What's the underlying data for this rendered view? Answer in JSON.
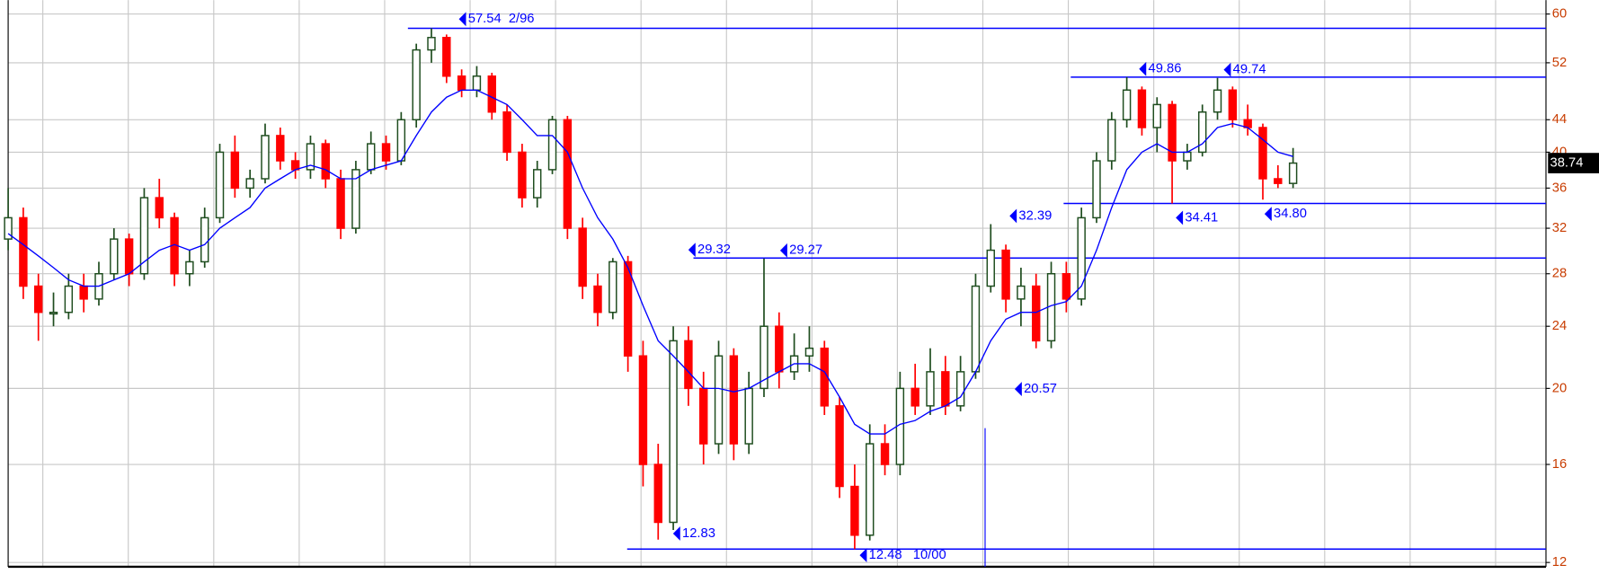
{
  "chart_data": {
    "type": "candlestick",
    "log_scale": true,
    "grid": true,
    "up_color": "#1f4d1f",
    "down_color": "#ff0000",
    "ma_color": "#0000ff",
    "level_color": "#0000ff",
    "ylim": [
      11.85,
      62.5
    ],
    "yticks": [
      12,
      16,
      20,
      24,
      28,
      32,
      36,
      40,
      44,
      52,
      60
    ],
    "last_price": 38.74,
    "open": [
      31,
      33,
      27,
      25,
      25,
      27,
      26,
      28,
      31,
      28,
      35,
      33,
      28,
      29,
      33,
      40,
      36,
      37,
      42,
      39,
      38,
      41,
      37,
      32,
      38,
      41,
      39,
      44,
      54,
      56,
      50,
      48,
      50,
      45,
      40,
      35,
      38,
      44,
      32,
      27,
      25,
      29,
      22,
      16,
      13.5,
      23,
      20,
      17,
      22,
      17,
      20,
      24,
      21,
      22,
      22.5,
      19,
      15,
      13,
      17,
      16,
      20,
      19,
      21,
      19,
      21,
      27,
      30,
      26,
      27,
      23,
      28,
      26,
      33,
      39,
      44,
      48,
      43,
      46,
      39,
      40,
      45,
      48,
      44,
      43,
      37,
      36.5
    ],
    "high": [
      36,
      34,
      28,
      26.5,
      28,
      28,
      29,
      32,
      31.5,
      36,
      37,
      33.5,
      30,
      34,
      41,
      42,
      38,
      43.5,
      43,
      40,
      42,
      41.5,
      38,
      39,
      42.5,
      42,
      45,
      55,
      57.54,
      56.5,
      51,
      51.5,
      50.5,
      46,
      41,
      39,
      44.5,
      44.5,
      33,
      28,
      29.32,
      29.5,
      23,
      17,
      24,
      24,
      21,
      23,
      22.5,
      21,
      29.27,
      25,
      23.5,
      24,
      23,
      19.5,
      16,
      18,
      18,
      21,
      21.5,
      22.5,
      22,
      22,
      28,
      32.39,
      30.5,
      28.5,
      28,
      29,
      29,
      34,
      40,
      45,
      49.86,
      48.5,
      47,
      46.5,
      41,
      46,
      49.74,
      48.5,
      46,
      43.5,
      38.5,
      40.5
    ],
    "low": [
      30,
      26,
      23,
      24,
      24.5,
      25,
      25.5,
      27.5,
      27,
      27.5,
      32,
      27,
      27,
      28.5,
      32.5,
      35,
      35,
      36.5,
      38,
      37,
      37,
      36,
      31,
      31.5,
      37.5,
      38,
      38.5,
      43,
      52,
      49,
      47,
      47,
      44,
      39,
      34,
      34,
      37.5,
      31,
      26,
      24,
      24.5,
      21,
      15,
      12.83,
      13.2,
      19,
      16,
      16.5,
      16.2,
      16.5,
      19.5,
      20,
      20.5,
      21,
      18.5,
      14.5,
      12.48,
      12.8,
      15.5,
      15.5,
      18.5,
      18.5,
      18.5,
      18.7,
      20.57,
      26.5,
      25,
      24,
      22.5,
      22.5,
      25,
      25.5,
      32.5,
      38,
      43,
      42,
      40,
      34.41,
      38,
      39.5,
      44,
      43,
      42,
      34.8,
      36,
      36
    ],
    "close": [
      33,
      27,
      25,
      25,
      27,
      26,
      28,
      31,
      28,
      35,
      33,
      28,
      29,
      33,
      40,
      36,
      37,
      42,
      39,
      38,
      41,
      37,
      32,
      38,
      41,
      39,
      44,
      54,
      56,
      50,
      48,
      50,
      45,
      40,
      35,
      38,
      44,
      32,
      27,
      25,
      29,
      22,
      16,
      13.5,
      23,
      20,
      17,
      22,
      17,
      20,
      24,
      21,
      22,
      22.5,
      19,
      15,
      13,
      17,
      16,
      20,
      19,
      21,
      19,
      21,
      27,
      30,
      26,
      27,
      23,
      28,
      26,
      33,
      39,
      44,
      48,
      43,
      46,
      39,
      40,
      45,
      48,
      44,
      43,
      37,
      36.5,
      38.74
    ],
    "moving_average": [
      31.5,
      30.5,
      29.5,
      28.5,
      27.5,
      27,
      27,
      27.5,
      28,
      29,
      30,
      30.5,
      30,
      30.5,
      32,
      33,
      34,
      36,
      37,
      38,
      38.5,
      38,
      37,
      37,
      38,
      38.5,
      39,
      42,
      45,
      47,
      48,
      48,
      47,
      46,
      44,
      42,
      42,
      40,
      36,
      33,
      31,
      28.5,
      25.5,
      23,
      22,
      21,
      20,
      20,
      19.8,
      20,
      20.5,
      21,
      21.5,
      21.5,
      21,
      19.5,
      18,
      17.5,
      17.5,
      18,
      18.2,
      18.7,
      19,
      19.5,
      21,
      23,
      24.5,
      25,
      25,
      25.5,
      25.8,
      27,
      30,
      34,
      38,
      40,
      41,
      40,
      40,
      41,
      43,
      43.5,
      43,
      41.5,
      40,
      39.5
    ],
    "levels": [
      57.54,
      49.86,
      34.41,
      29.32,
      12.48
    ],
    "annotations": [
      {
        "label": "57.54  2/96",
        "value": 57.54
      },
      {
        "label": "49.86",
        "value": 49.86
      },
      {
        "label": "49.74",
        "value": 49.74
      },
      {
        "label": "32.39",
        "value": 32.39
      },
      {
        "label": "29.32",
        "value": 29.32
      },
      {
        "label": "29.27",
        "value": 29.27
      },
      {
        "label": "34.41",
        "value": 34.41
      },
      {
        "label": "34.80",
        "value": 34.8
      },
      {
        "label": "20.57",
        "value": 20.57
      },
      {
        "label": "12.83",
        "value": 12.83
      },
      {
        "label": "12.48   10/00",
        "value": 12.48
      }
    ]
  }
}
